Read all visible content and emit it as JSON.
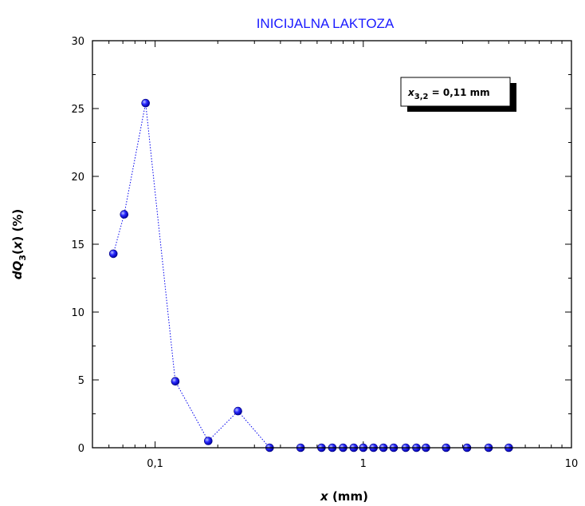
{
  "chart_data": {
    "type": "scatter",
    "title": "INICIJALNA LAKTOZA",
    "xlabel": {
      "main": "x",
      "unit": " (mm)"
    },
    "ylabel": {
      "prefix": "dQ",
      "sub": "3",
      "open": "(",
      "var": "x",
      "close": ") (%)"
    },
    "x_scale": "log",
    "xlim": [
      0.05,
      10
    ],
    "ylim": [
      0,
      30
    ],
    "x_ticks": [
      {
        "value": 0.1,
        "label": "0,1"
      },
      {
        "value": 1,
        "label": "1"
      },
      {
        "value": 10,
        "label": "10"
      }
    ],
    "y_ticks": [
      {
        "value": 0,
        "label": "0"
      },
      {
        "value": 5,
        "label": "5"
      },
      {
        "value": 10,
        "label": "10"
      },
      {
        "value": 15,
        "label": "15"
      },
      {
        "value": 20,
        "label": "20"
      },
      {
        "value": 25,
        "label": "25"
      },
      {
        "value": 30,
        "label": "30"
      }
    ],
    "series": [
      {
        "color": "#0000ee",
        "line_style": "dotted",
        "x": [
          0.063,
          0.071,
          0.09,
          0.125,
          0.18,
          0.25,
          0.355,
          0.5,
          0.63,
          0.71,
          0.8,
          0.9,
          1.0,
          1.12,
          1.25,
          1.4,
          1.6,
          1.8,
          2.0,
          2.5,
          3.15,
          4.0,
          5.0
        ],
        "y": [
          14.3,
          17.2,
          25.4,
          4.9,
          0.5,
          2.7,
          0.0,
          0.0,
          0.0,
          0.0,
          0.0,
          0.0,
          0.0,
          0.0,
          0.0,
          0.0,
          0.0,
          0.0,
          0.0,
          0.0,
          0.0,
          0.0,
          0.0
        ]
      }
    ],
    "annotation": {
      "var": "x",
      "sub": "3,2",
      "text": " = 0,11 mm"
    },
    "grid": false
  }
}
